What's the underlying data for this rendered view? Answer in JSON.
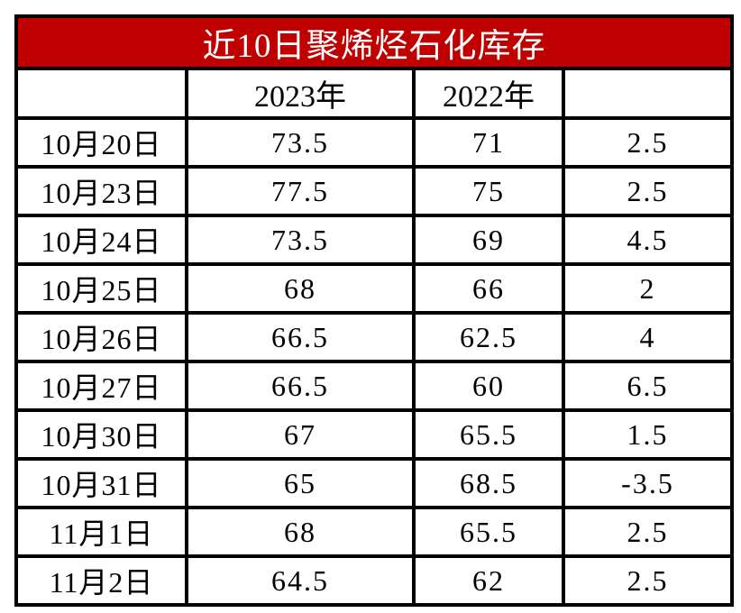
{
  "chart_data": {
    "type": "table",
    "title": "近10日聚烯烃石化库存",
    "columns": [
      "",
      "2023年",
      "2022年",
      ""
    ],
    "rows": [
      [
        "10月20日",
        73.5,
        71,
        2.5
      ],
      [
        "10月23日",
        77.5,
        75,
        2.5
      ],
      [
        "10月24日",
        73.5,
        69,
        4.5
      ],
      [
        "10月25日",
        68,
        66,
        2
      ],
      [
        "10月26日",
        66.5,
        62.5,
        4
      ],
      [
        "10月27日",
        66.5,
        60,
        6.5
      ],
      [
        "10月30日",
        67,
        65.5,
        1.5
      ],
      [
        "10月31日",
        65,
        68.5,
        -3.5
      ],
      [
        "11月1日",
        68,
        65.5,
        2.5
      ],
      [
        "11月2日",
        64.5,
        62,
        2.5
      ]
    ],
    "layout": {
      "grid": true,
      "title_position": "top-banner"
    }
  },
  "colors": {
    "title_bg": "#c00000",
    "title_text": "#ffffff",
    "border": "#000000",
    "cell_bg": "#ffffff",
    "cell_text": "#000000"
  }
}
